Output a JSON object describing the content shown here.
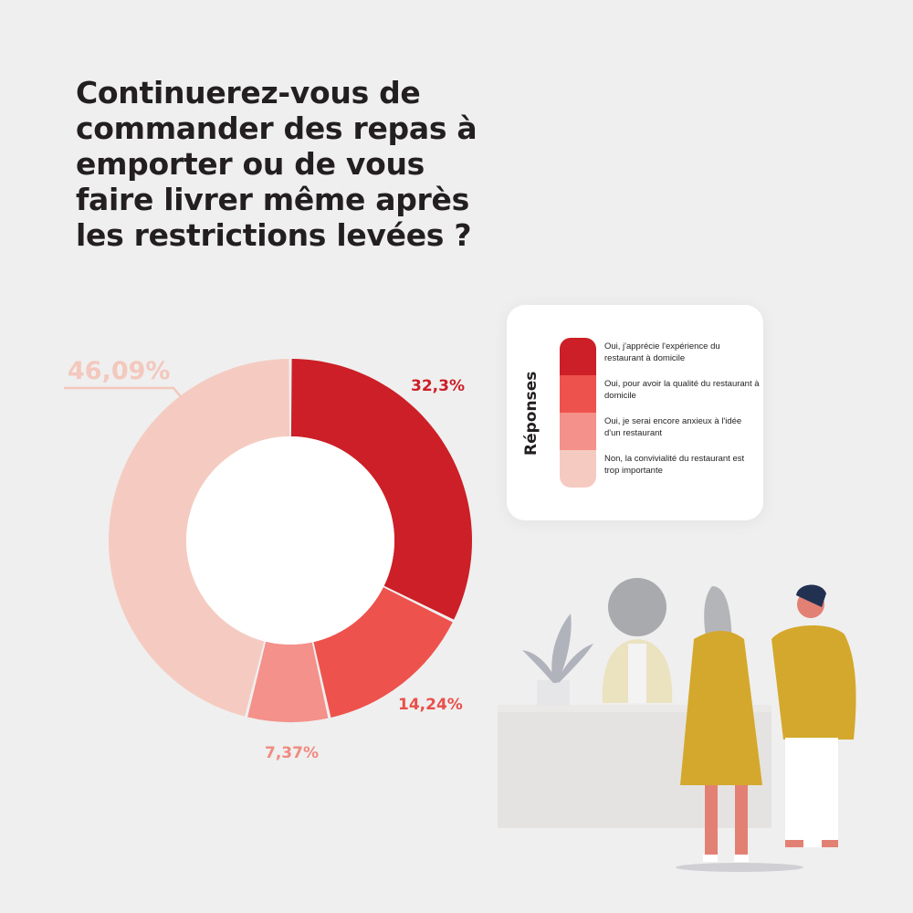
{
  "title": "Continuerez-vous de commander des repas à emporter ou de vous faire livrer même après les restrictions levées ?",
  "legend": {
    "title": "Réponses",
    "items": [
      {
        "label": "Oui, j'apprécie l'expérience du restaurant à domicile",
        "color": "#cc1f27"
      },
      {
        "label": "Oui, pour avoir la qualité du restaurant à domicile",
        "color": "#ee524d"
      },
      {
        "label": "Oui, je serai encore anxieux à l'idée d'un restaurant",
        "color": "#f4918a"
      },
      {
        "label": "Non, la convivialité du restaurant est trop importante",
        "color": "#f5cbc1"
      }
    ]
  },
  "labels": {
    "a": "32,3%",
    "b": "14,24%",
    "c": "7,37%",
    "d": "46,09%"
  },
  "chart_data": {
    "type": "pie",
    "subtype": "donut",
    "title": "Continuerez-vous de commander des repas à emporter ou de vous faire livrer même après les restrictions levées ?",
    "legend_title": "Réponses",
    "legend_position": "right",
    "categories": [
      "Oui, j'apprécie l'expérience du restaurant à domicile",
      "Oui, pour avoir la qualité du restaurant à domicile",
      "Oui, je serai encore anxieux à l'idée d'un restaurant",
      "Non, la convivialité du restaurant est trop importante"
    ],
    "values": [
      32.3,
      14.24,
      7.37,
      46.09
    ],
    "value_labels": [
      "32,3%",
      "14,24%",
      "7,37%",
      "46,09%"
    ],
    "colors": [
      "#cc1f27",
      "#ee524d",
      "#f4918a",
      "#f5cbc1"
    ],
    "start_angle": "top, clockwise"
  }
}
